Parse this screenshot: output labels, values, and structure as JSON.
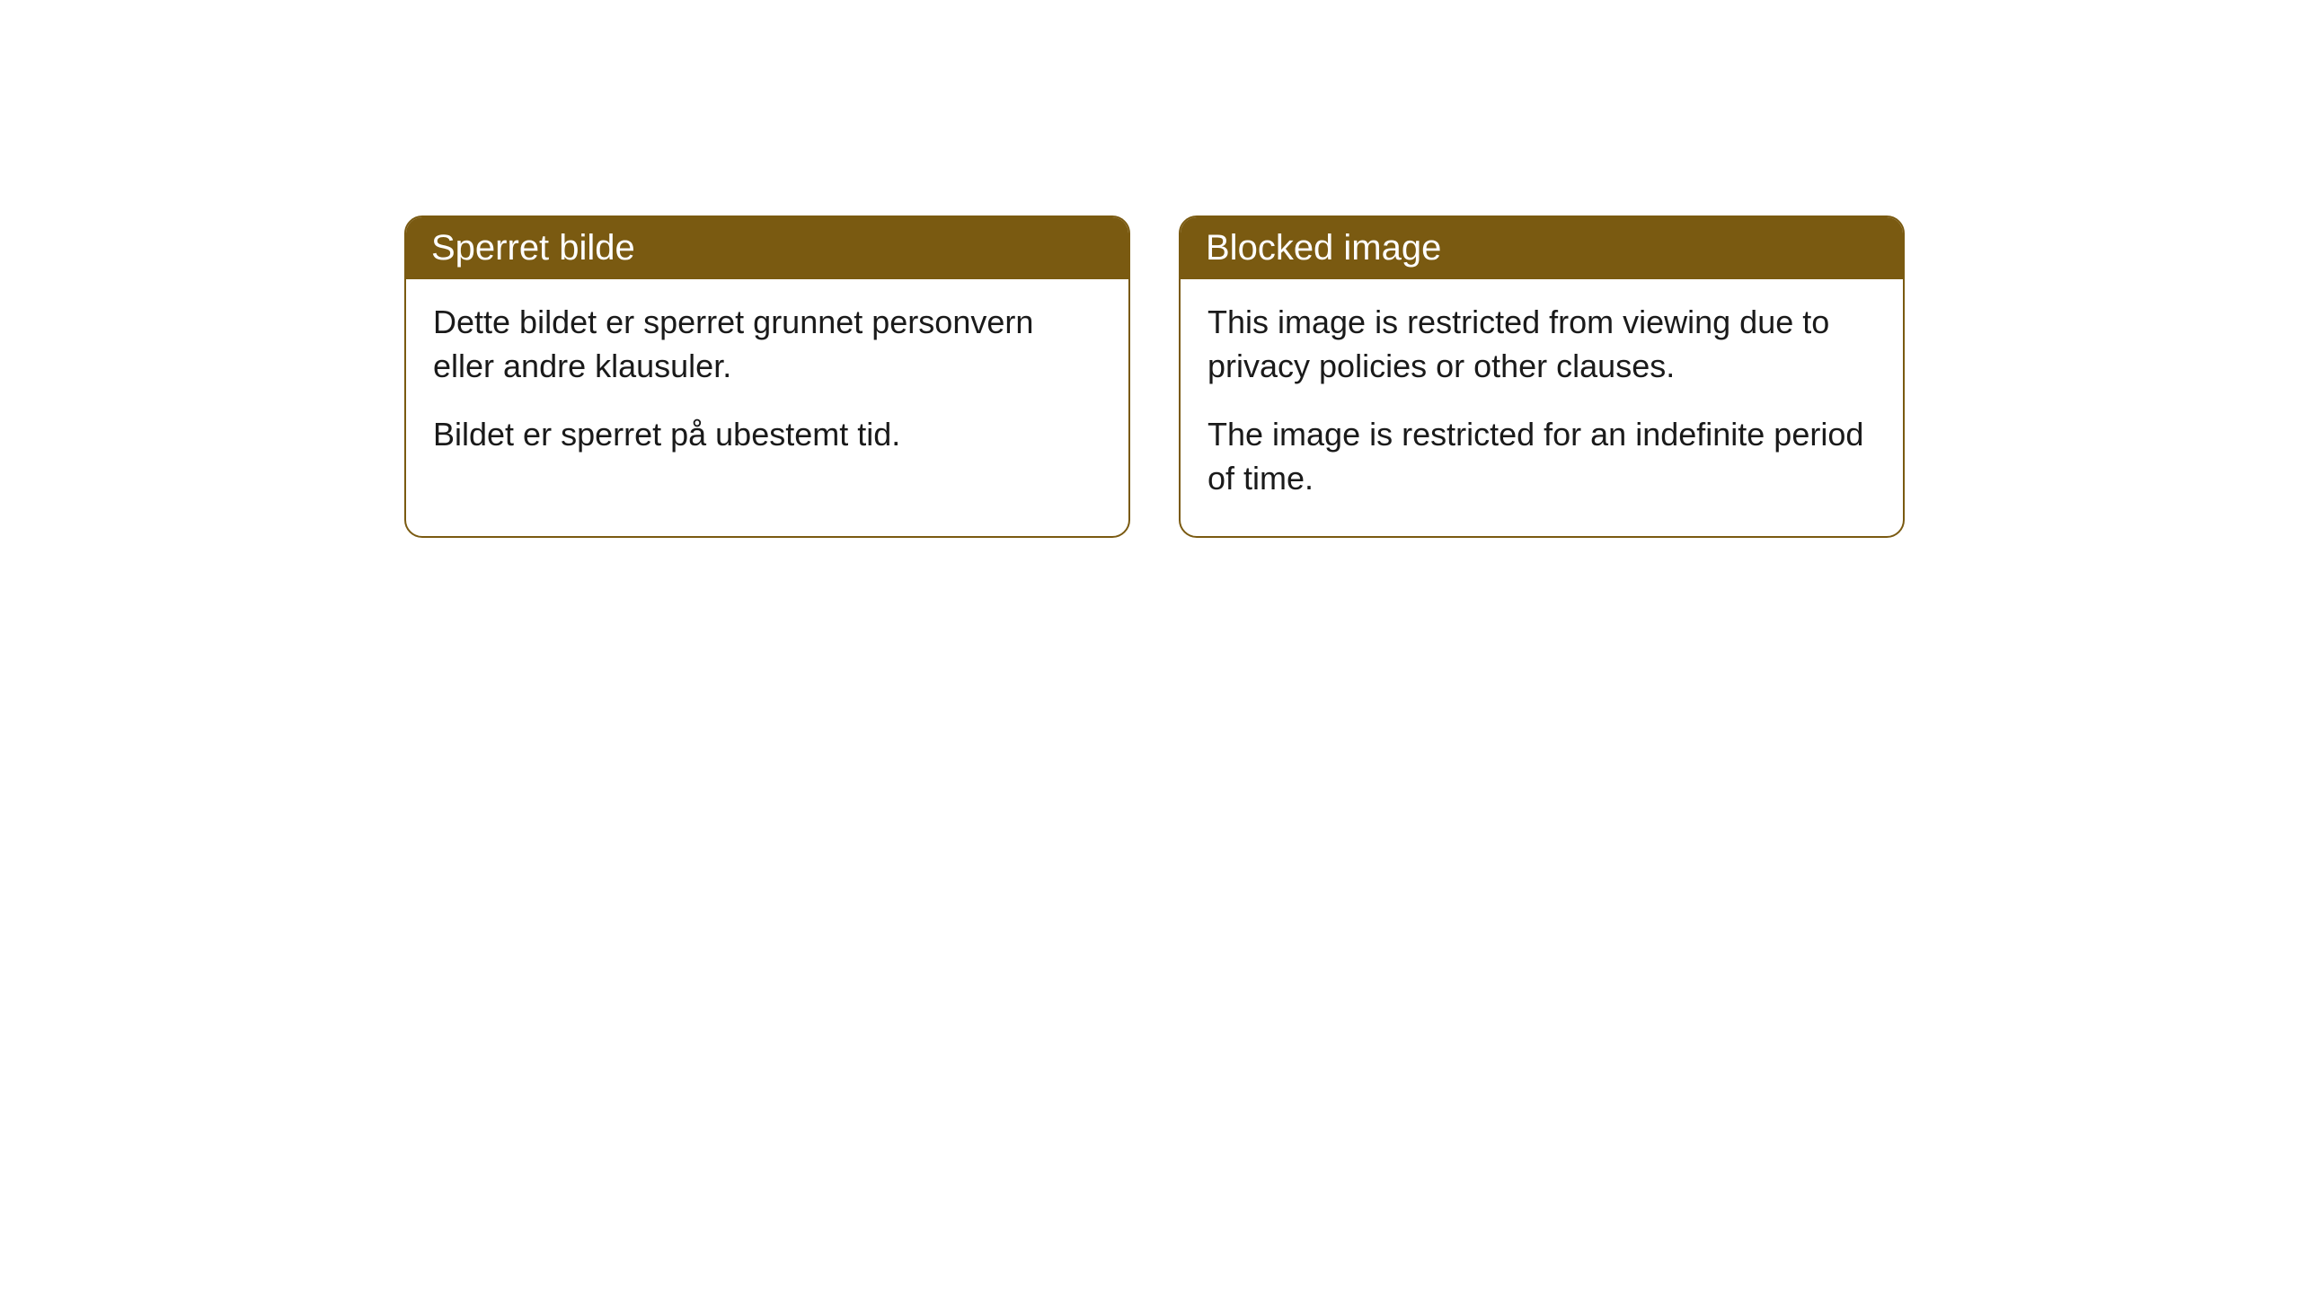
{
  "cards": [
    {
      "title": "Sperret bilde",
      "paragraph1": "Dette bildet er sperret grunnet personvern eller andre klausuler.",
      "paragraph2": "Bildet er sperret på ubestemt tid."
    },
    {
      "title": "Blocked image",
      "paragraph1": "This image is restricted from viewing due to privacy policies or other clauses.",
      "paragraph2": "The image is restricted for an indefinite period of time."
    }
  ],
  "styling": {
    "header_background": "#7a5a11",
    "header_text_color": "#ffffff",
    "border_color": "#7a5a11",
    "body_text_color": "#1a1a1a",
    "background_color": "#ffffff",
    "border_radius": 20,
    "title_fontsize": 40,
    "body_fontsize": 36
  }
}
